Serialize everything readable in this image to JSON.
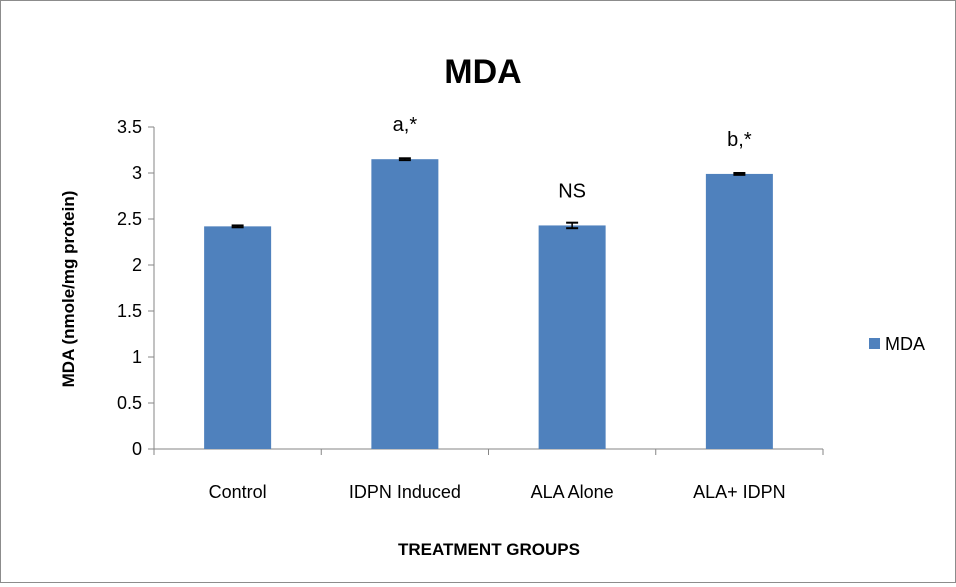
{
  "chart_data": {
    "type": "bar",
    "title": "MDA",
    "xlabel": "TREATMENT GROUPS",
    "ylabel": "MDA (nmole/mg protein)",
    "categories": [
      "Control",
      "IDPN Induced",
      "ALA Alone",
      "ALA+ IDPN"
    ],
    "series": [
      {
        "name": "MDA",
        "values": [
          2.42,
          3.15,
          2.43,
          2.99
        ],
        "errors": [
          0.01,
          0.01,
          0.03,
          0.01
        ],
        "color": "#4f81bd"
      }
    ],
    "annotations": [
      "",
      "a,*",
      "NS",
      "b,*"
    ],
    "ylim": [
      0,
      3.5
    ],
    "yticks": [
      "0",
      "0.5",
      "1",
      "1.5",
      "2",
      "2.5",
      "3",
      "3.5"
    ],
    "grid": false,
    "legend": "right"
  }
}
